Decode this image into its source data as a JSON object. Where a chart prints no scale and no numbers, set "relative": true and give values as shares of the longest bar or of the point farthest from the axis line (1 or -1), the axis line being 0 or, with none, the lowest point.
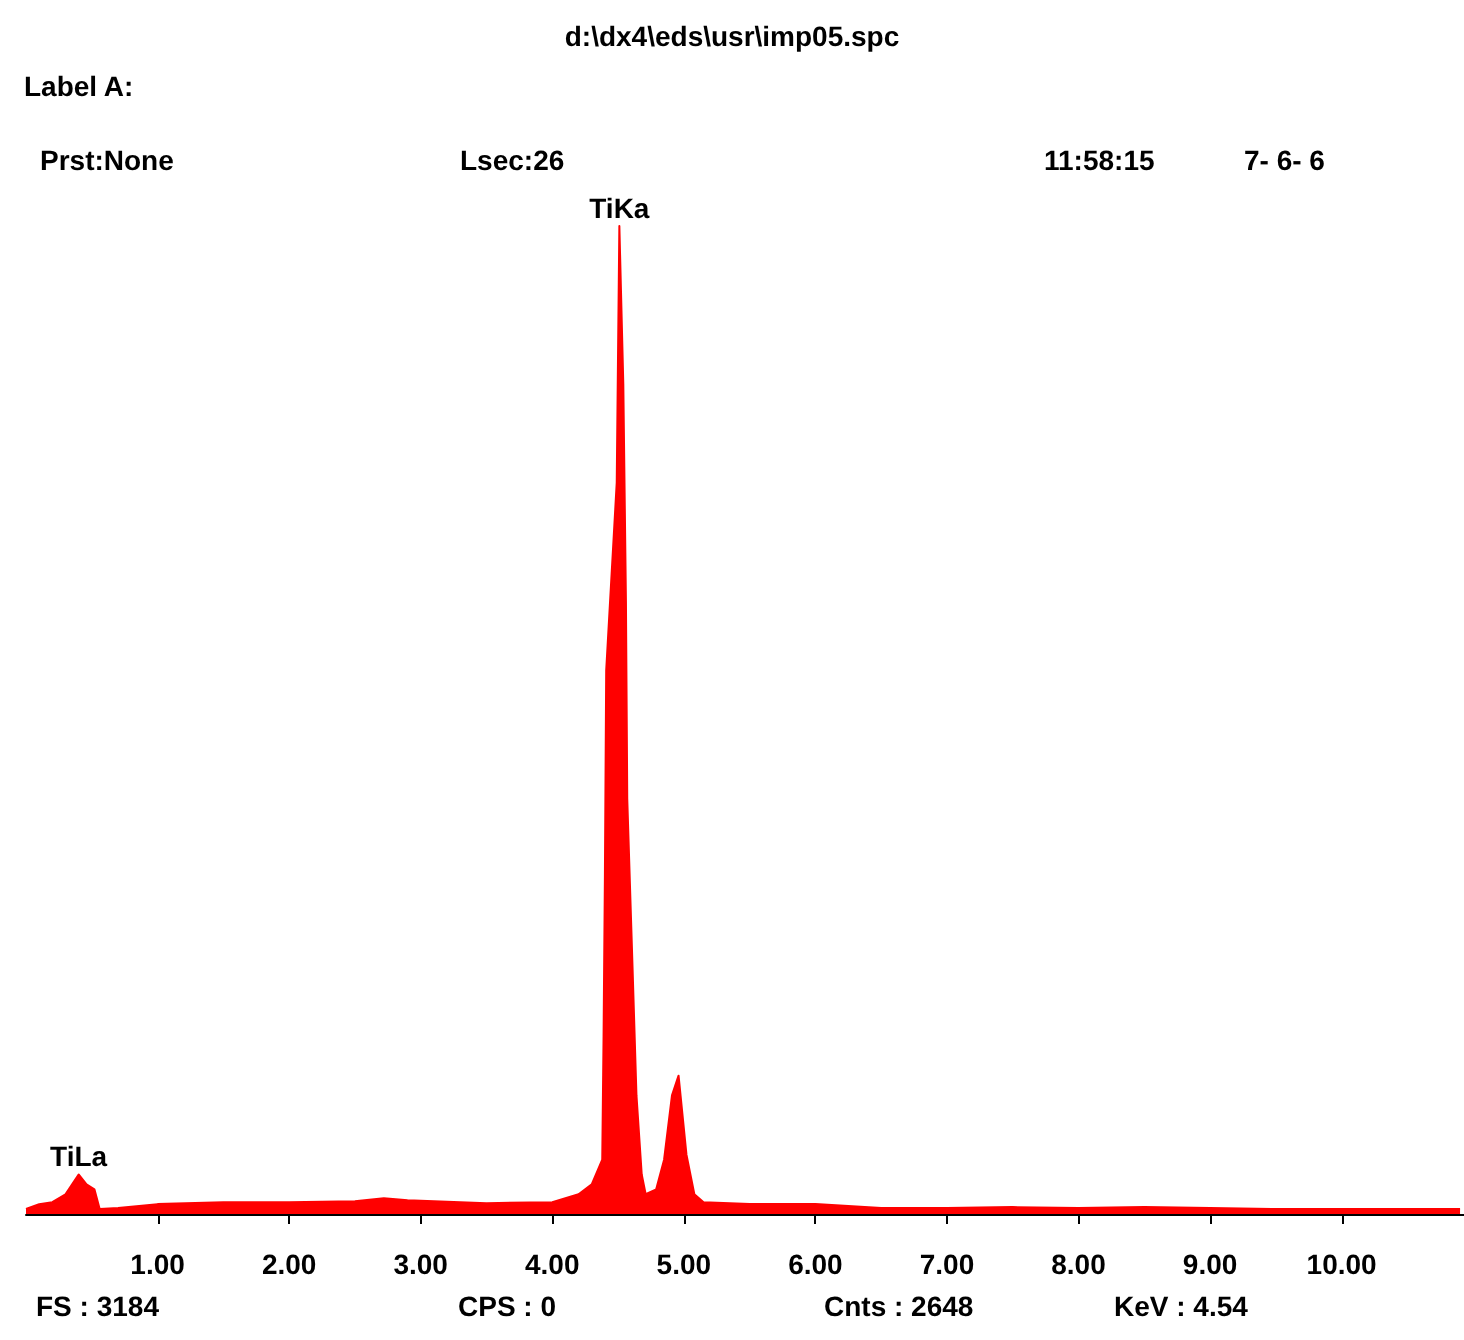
{
  "chart_data": {
    "type": "area",
    "title": "d:\\dx4\\eds\\usr\\imp05.spc",
    "relative": true,
    "annotations": [
      "Label A:",
      "Prst:None",
      "Lsec:26",
      "11:58:15",
      "7- 6- 6",
      "FS : 3184",
      "CPS : 0",
      "Cnts : 2648",
      "KeV : 4.54",
      {
        "text": "TiKa",
        "x": 4.51,
        "y": 1.0
      },
      {
        "text": "TiLa",
        "x": 0.4,
        "y": 0.04
      }
    ],
    "series": [
      {
        "color": "#ff0000",
        "x": [
          0,
          0.1,
          0.2,
          0.3,
          0.4,
          0.46,
          0.52,
          0.56,
          0.7,
          1.0,
          1.5,
          2.0,
          2.5,
          2.72,
          2.9,
          3.5,
          4.0,
          4.2,
          4.3,
          4.38,
          4.39,
          4.4,
          4.41,
          4.49,
          4.51,
          4.54,
          4.56,
          4.57,
          4.61,
          4.64,
          4.68,
          4.71,
          4.79,
          4.85,
          4.91,
          4.96,
          5.02,
          5.08,
          5.15,
          5.5,
          6.0,
          6.5,
          7.0,
          7.5,
          8.0,
          8.5,
          9.0,
          9.5,
          10.0,
          10.5,
          10.9
        ],
        "values": [
          0.005,
          0.01,
          0.012,
          0.02,
          0.04,
          0.03,
          0.025,
          0.005,
          0.006,
          0.01,
          0.012,
          0.012,
          0.013,
          0.016,
          0.014,
          0.011,
          0.012,
          0.02,
          0.03,
          0.055,
          0.18,
          0.34,
          0.55,
          0.74,
          1.0,
          0.84,
          0.62,
          0.42,
          0.25,
          0.12,
          0.04,
          0.02,
          0.025,
          0.055,
          0.12,
          0.14,
          0.06,
          0.02,
          0.012,
          0.01,
          0.01,
          0.006,
          0.006,
          0.007,
          0.006,
          0.007,
          0.006,
          0.005,
          0.005,
          0.005,
          0.005
        ]
      }
    ],
    "xlim": [
      0,
      10.93
    ],
    "xticks": [
      {
        "value": 1,
        "label": "1.00"
      },
      {
        "value": 2,
        "label": "2.00"
      },
      {
        "value": 3,
        "label": "3.00"
      },
      {
        "value": 4,
        "label": "4.00"
      },
      {
        "value": 5,
        "label": "5.00"
      },
      {
        "value": 6,
        "label": "6.00"
      },
      {
        "value": 7,
        "label": "7.00"
      },
      {
        "value": 8,
        "label": "8.00"
      },
      {
        "value": 9,
        "label": "9.00"
      },
      {
        "value": 10,
        "label": "10.00"
      }
    ],
    "tick_labels": "x",
    "grid": false
  }
}
